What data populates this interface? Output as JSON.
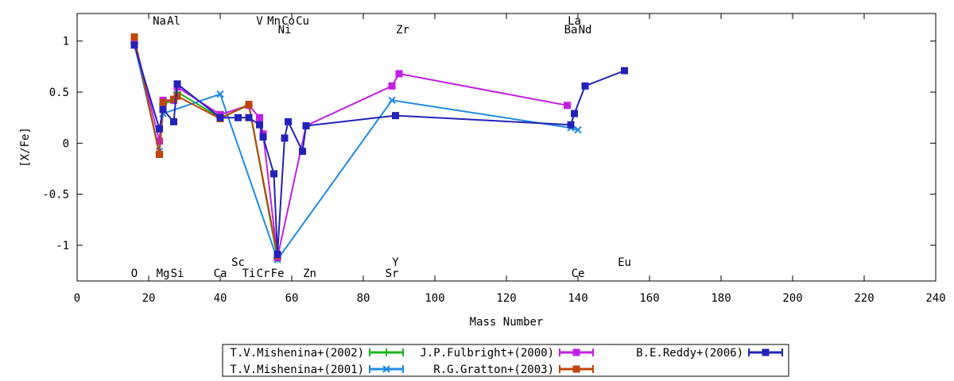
{
  "chart_data": {
    "type": "line",
    "title": "",
    "xlabel": "Mass Number",
    "ylabel": "[X/Fe]",
    "xlim": [
      0,
      240
    ],
    "ylim": [
      -1.35,
      1.27
    ],
    "x_ticks": [
      0,
      20,
      40,
      60,
      80,
      100,
      120,
      140,
      160,
      180,
      200,
      220,
      240
    ],
    "y_ticks": [
      -1,
      -0.5,
      0,
      0.5,
      1
    ],
    "y_tick_labels": [
      "-1",
      "-0.5",
      "0",
      "0.5",
      "1"
    ],
    "grid": false,
    "legend_position": "bottom-center",
    "element_labels": [
      {
        "text": "Na",
        "x": 23,
        "row": "top-upper"
      },
      {
        "text": "Al",
        "x": 27,
        "row": "top-upper"
      },
      {
        "text": "V",
        "x": 51,
        "row": "top-upper"
      },
      {
        "text": "Mn",
        "x": 55,
        "row": "top-upper"
      },
      {
        "text": "Co",
        "x": 59,
        "row": "top-upper"
      },
      {
        "text": "Cu",
        "x": 63,
        "row": "top-upper"
      },
      {
        "text": "La",
        "x": 139,
        "row": "top-upper"
      },
      {
        "text": "Ni",
        "x": 58,
        "row": "top-lower"
      },
      {
        "text": "Zr",
        "x": 91,
        "row": "top-lower"
      },
      {
        "text": "Ba",
        "x": 138,
        "row": "top-lower"
      },
      {
        "text": "Nd",
        "x": 142,
        "row": "top-lower"
      },
      {
        "text": "Sc",
        "x": 45,
        "row": "bottom-upper"
      },
      {
        "text": "Y",
        "x": 89,
        "row": "bottom-upper"
      },
      {
        "text": "Eu",
        "x": 153,
        "row": "bottom-upper"
      },
      {
        "text": "O",
        "x": 16,
        "row": "bottom-lower"
      },
      {
        "text": "Mg",
        "x": 24,
        "row": "bottom-lower"
      },
      {
        "text": "Si",
        "x": 28,
        "row": "bottom-lower"
      },
      {
        "text": "Ca",
        "x": 40,
        "row": "bottom-lower"
      },
      {
        "text": "Ti",
        "x": 48,
        "row": "bottom-lower"
      },
      {
        "text": "Cr",
        "x": 52,
        "row": "bottom-lower"
      },
      {
        "text": "Fe",
        "x": 56,
        "row": "bottom-lower"
      },
      {
        "text": "Zn",
        "x": 65,
        "row": "bottom-lower"
      },
      {
        "text": "Sr",
        "x": 88,
        "row": "bottom-lower"
      },
      {
        "text": "Ce",
        "x": 140,
        "row": "bottom-lower"
      }
    ],
    "series": [
      {
        "name": "T.V.Mishenina+(2002)",
        "color": "#1db51d",
        "marker": "plus",
        "x": [
          16,
          23,
          24,
          27,
          28,
          40,
          48,
          56
        ],
        "y": [
          0.98,
          -0.1,
          0.38,
          0.42,
          0.5,
          0.25,
          0.37,
          -1.13
        ]
      },
      {
        "name": "T.V.Mishenina+(2001)",
        "color": "#1f8ae6",
        "marker": "cross",
        "x": [
          16,
          23,
          24,
          40,
          56,
          88,
          138,
          140
        ],
        "y": [
          0.97,
          -0.08,
          0.29,
          0.48,
          -1.14,
          0.42,
          0.15,
          0.13
        ]
      },
      {
        "name": "J.P.Fulbright+(2000)",
        "color": "#c21fe6",
        "marker": "square",
        "x": [
          16,
          23,
          24,
          27,
          28,
          40,
          48,
          51,
          52,
          56,
          64,
          88,
          90,
          137
        ],
        "y": [
          1.02,
          0.02,
          0.42,
          0.42,
          0.55,
          0.28,
          0.37,
          0.25,
          0.09,
          -1.12,
          0.17,
          0.56,
          0.68,
          0.37
        ]
      },
      {
        "name": "R.G.Gratton+(2003)",
        "color": "#c2440c",
        "marker": "square",
        "x": [
          16,
          23,
          24,
          27,
          28,
          40,
          48,
          56
        ],
        "y": [
          1.04,
          -0.11,
          0.4,
          0.43,
          0.46,
          0.24,
          0.38,
          -1.1
        ]
      },
      {
        "name": "B.E.Reddy+(2006)",
        "color": "#2323b9",
        "marker": "square",
        "x": [
          16,
          23,
          24,
          27,
          28,
          40,
          45,
          48,
          51,
          52,
          55,
          56,
          58,
          59,
          63,
          64,
          89,
          138,
          139,
          142,
          153
        ],
        "y": [
          0.96,
          0.14,
          0.33,
          0.21,
          0.58,
          0.25,
          0.25,
          0.25,
          0.18,
          0.06,
          -0.3,
          -1.09,
          0.05,
          0.21,
          -0.08,
          0.17,
          0.27,
          0.18,
          0.29,
          0.56,
          0.71
        ]
      }
    ]
  }
}
